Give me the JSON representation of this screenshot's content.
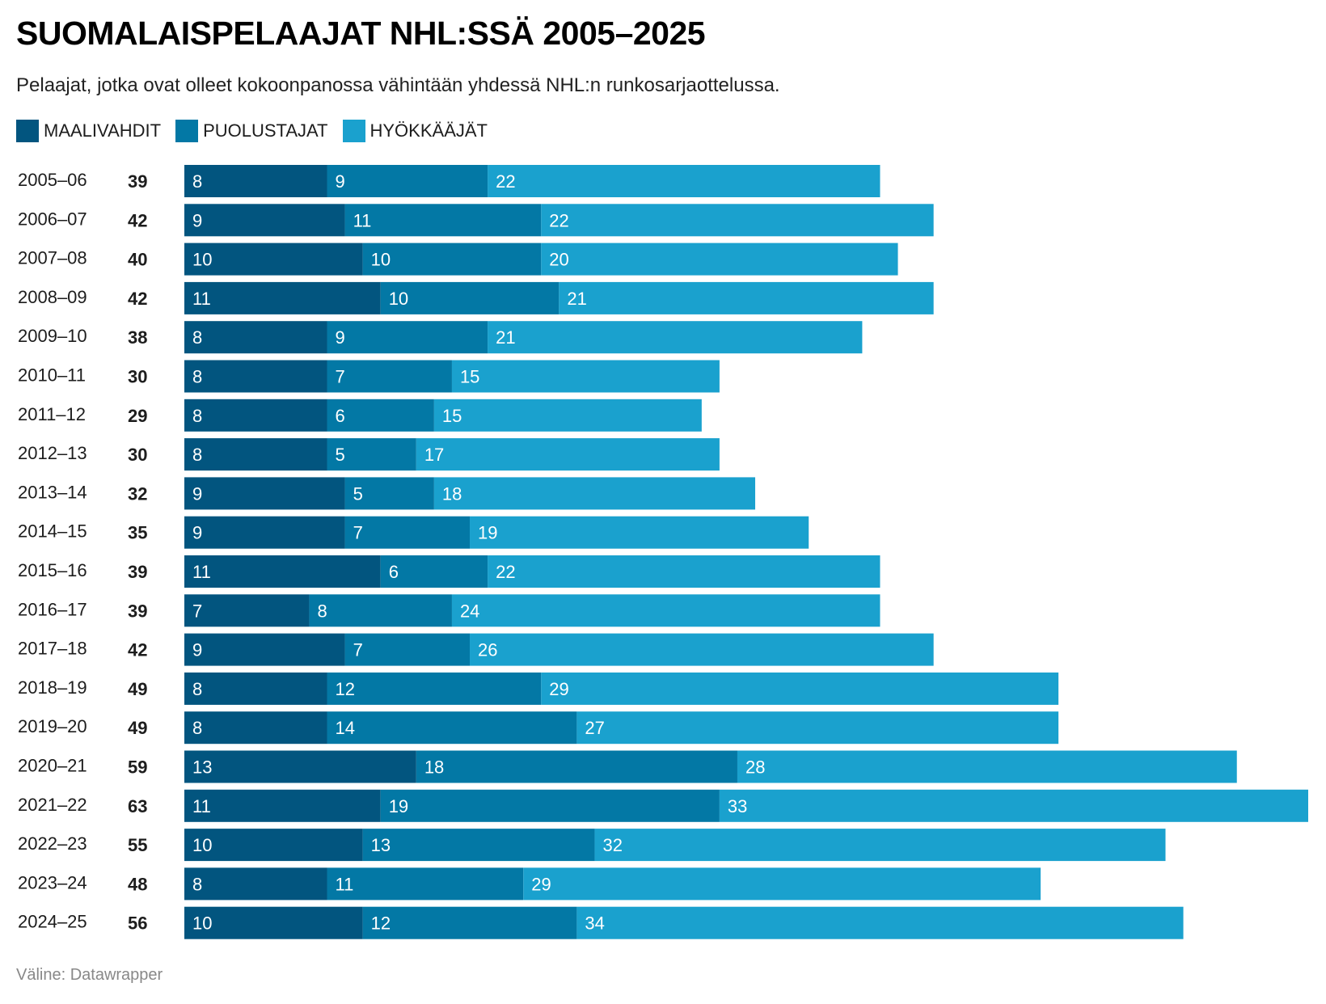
{
  "header": {
    "title": "SUOMALAISPELAAJAT NHL:SSÄ 2005–2025",
    "subtitle": "Pelaajat, jotka ovat olleet kokoonpanossa vähintään yhdessä NHL:n runkosarjaottelussa."
  },
  "legend": [
    {
      "label": "MAALIVAHDIT",
      "color": "#02557f"
    },
    {
      "label": "PUOLUSTAJAT",
      "color": "#0378a5"
    },
    {
      "label": "HYÖKKÄÄJÄT",
      "color": "#1aa1ce"
    }
  ],
  "footer": {
    "source": "Väline: Datawrapper"
  },
  "chart_data": {
    "type": "bar",
    "orientation": "horizontal",
    "stacked": true,
    "title": "SUOMALAISPELAAJAT NHL:SSÄ 2005–2025",
    "subtitle": "Pelaajat, jotka ovat olleet kokoonpanossa vähintään yhdessä NHL:n runkosarjaottelussa.",
    "xlabel": "",
    "ylabel": "",
    "legend_position": "top-left",
    "grid": false,
    "xlim": [
      0,
      63
    ],
    "categories": [
      "2005–06",
      "2006–07",
      "2007–08",
      "2008–09",
      "2009–10",
      "2010–11",
      "2011–12",
      "2012–13",
      "2013–14",
      "2014–15",
      "2015–16",
      "2016–17",
      "2017–18",
      "2018–19",
      "2019–20",
      "2020–21",
      "2021–22",
      "2022–23",
      "2023–24",
      "2024–25"
    ],
    "totals": [
      39,
      42,
      40,
      42,
      38,
      30,
      29,
      30,
      32,
      35,
      39,
      39,
      42,
      49,
      49,
      59,
      63,
      55,
      48,
      56
    ],
    "series": [
      {
        "name": "MAALIVAHDIT",
        "color": "#02557f",
        "values": [
          8,
          9,
          10,
          11,
          8,
          8,
          8,
          8,
          9,
          9,
          11,
          7,
          9,
          8,
          8,
          13,
          11,
          10,
          8,
          10
        ]
      },
      {
        "name": "PUOLUSTAJAT",
        "color": "#0378a5",
        "values": [
          9,
          11,
          10,
          10,
          9,
          7,
          6,
          5,
          5,
          7,
          6,
          8,
          7,
          12,
          14,
          18,
          19,
          13,
          11,
          12
        ]
      },
      {
        "name": "HYÖKKÄÄJÄT",
        "color": "#1aa1ce",
        "values": [
          22,
          22,
          20,
          21,
          21,
          15,
          15,
          17,
          18,
          19,
          22,
          24,
          26,
          29,
          27,
          28,
          33,
          32,
          29,
          34
        ]
      }
    ]
  }
}
